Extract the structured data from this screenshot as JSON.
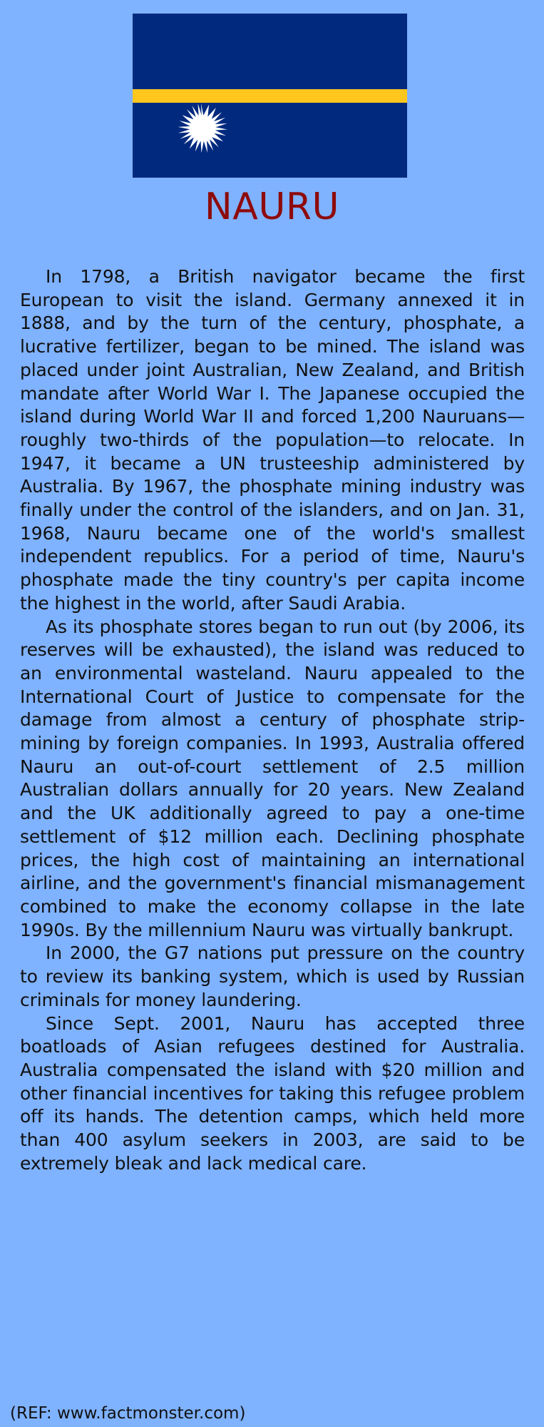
{
  "flag": {
    "icon": "nauru-flag-icon",
    "colors": {
      "field": "#012a7f",
      "stripe": "#ffc61e",
      "star": "#ffffff"
    }
  },
  "title": "NAURU",
  "colors": {
    "background": "#7fb2ff",
    "title": "#8e0b0b",
    "text": "#111111"
  },
  "paragraphs": [
    "In 1798, a British navigator became the first European to visit the island. Germany annexed it in 1888, and by the turn of the century, phosphate, a lucrative fertilizer, began to be mined. The island was placed under joint Australian, New Zealand, and British mandate after World War I. The Japanese occupied the island during World War II and forced 1,200 Nauruans—roughly two-thirds of the population—to relocate. In 1947, it became a UN trusteeship administered by Australia. By 1967, the phosphate mining industry was finally under the control of the islanders, and on Jan. 31, 1968, Nauru became one of the world's smallest independent republics. For a period of time, Nauru's phosphate made the tiny country's per capita income the highest in the world, after Saudi Arabia.",
    "As its phosphate stores began to run out (by 2006, its reserves will be exhausted), the island was reduced to an environmental wasteland. Nauru appealed to the International Court of Justice to compensate for the damage from almost a century of phosphate strip-mining by foreign companies. In 1993, Australia offered Nauru an out-of-court settlement of 2.5 million Australian dollars annually for 20 years. New Zealand and the UK additionally agreed to pay a one-time settlement of $12 million each. Declining phosphate prices, the high cost of maintaining an international airline, and the government's financial mismanagement combined to make the economy collapse in the late 1990s. By the millennium Nauru was virtually bankrupt.",
    "In 2000, the G7 nations put pressure on the country to review its banking system, which is used by Russian criminals for money laundering.",
    "Since Sept. 2001, Nauru has accepted three boatloads of Asian refugees destined for Australia. Australia compensated the island with $20 million and other financial incentives for taking this refugee problem off its hands. The detention camps, which held more than 400 asylum seekers in 2003, are said to be extremely bleak and lack medical care."
  ],
  "reference": "(REF: www.factmonster.com)"
}
